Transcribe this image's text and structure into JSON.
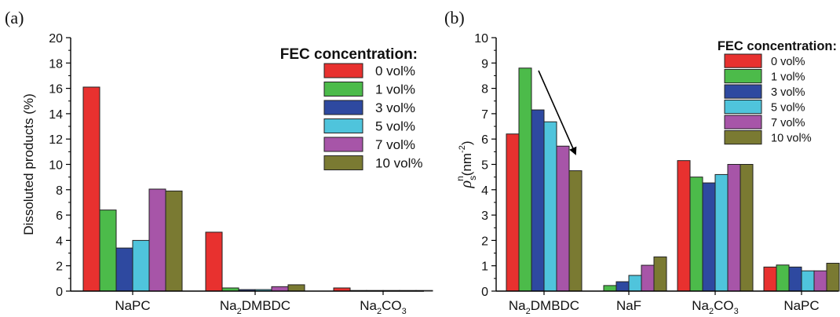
{
  "chart_data": [
    {
      "panel_label": "(a)",
      "type": "bar",
      "ylabel": "Dissoluted products (%)",
      "ylim": [
        0,
        20
      ],
      "yticks": [
        0,
        2,
        4,
        6,
        8,
        10,
        12,
        14,
        16,
        18,
        20
      ],
      "categories": [
        {
          "base": "NaPC",
          "sub": "",
          "tail": ""
        },
        {
          "base": "Na",
          "sub": "2",
          "tail": "DMBDC"
        },
        {
          "base": "Na",
          "sub": "2",
          "tail": "CO",
          "sub2": "3"
        }
      ],
      "legend_title": "FEC concentration:",
      "legend_position": "top-right",
      "series": [
        {
          "name": "0 vol%",
          "color": "#e8312f",
          "values": [
            16.1,
            4.65,
            0.25
          ]
        },
        {
          "name": "1 vol%",
          "color": "#4cbb4a",
          "values": [
            6.4,
            0.25,
            0.05
          ]
        },
        {
          "name": "3 vol%",
          "color": "#2e49a0",
          "values": [
            3.4,
            0.12,
            0.05
          ]
        },
        {
          "name": "5 vol%",
          "color": "#4fc4dc",
          "values": [
            4.0,
            0.12,
            0.05
          ]
        },
        {
          "name": "7 vol%",
          "color": "#a755a8",
          "values": [
            8.05,
            0.35,
            0.05
          ]
        },
        {
          "name": "10 vol%",
          "color": "#7a7a32",
          "values": [
            7.9,
            0.5,
            0.05
          ]
        }
      ]
    },
    {
      "panel_label": "(b)",
      "type": "bar",
      "ylabel": "ρ",
      "ylabel_sub": "s",
      "ylabel_sup": "n",
      "ylabel_unit": "(nm",
      "ylabel_unit_sup": "-2",
      "ylabel_close": ")",
      "ylim": [
        0,
        10
      ],
      "yticks": [
        0,
        1,
        2,
        3,
        4,
        5,
        6,
        7,
        8,
        9,
        10
      ],
      "categories": [
        {
          "base": "Na",
          "sub": "2",
          "tail": "DMBDC"
        },
        {
          "base": "NaF",
          "sub": "",
          "tail": ""
        },
        {
          "base": "Na",
          "sub": "2",
          "tail": "CO",
          "sub2": "3"
        },
        {
          "base": "NaPC",
          "sub": "",
          "tail": ""
        }
      ],
      "legend_title": "FEC concentration:",
      "legend_position": "top-right",
      "series": [
        {
          "name": "0 vol%",
          "color": "#e8312f",
          "values": [
            6.2,
            0,
            5.15,
            0.95
          ]
        },
        {
          "name": "1 vol%",
          "color": "#4cbb4a",
          "values": [
            8.8,
            0.22,
            4.5,
            1.03
          ]
        },
        {
          "name": "3 vol%",
          "color": "#2e49a0",
          "values": [
            7.15,
            0.37,
            4.27,
            0.95
          ]
        },
        {
          "name": "5 vol%",
          "color": "#4fc4dc",
          "values": [
            6.68,
            0.62,
            4.6,
            0.8
          ]
        },
        {
          "name": "7 vol%",
          "color": "#a755a8",
          "values": [
            5.72,
            1.02,
            5.0,
            0.8
          ]
        },
        {
          "name": "10 vol%",
          "color": "#7a7a32",
          "values": [
            4.75,
            1.35,
            5.0,
            1.1
          ]
        }
      ],
      "annotation": "downward-trend-arrow"
    }
  ]
}
